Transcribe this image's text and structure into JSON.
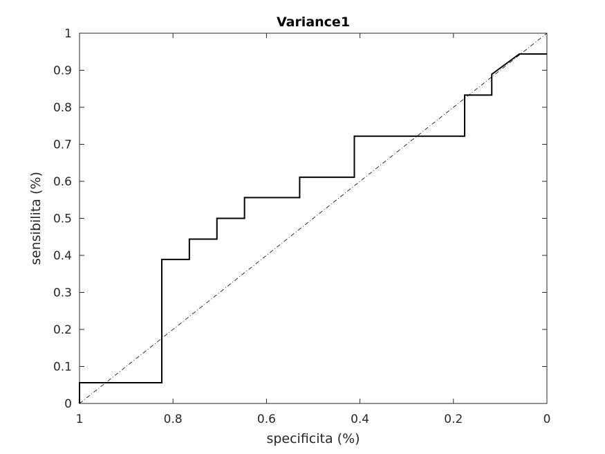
{
  "chart_data": {
    "type": "line",
    "title": "Variance1",
    "xlabel": "specificita (%)",
    "ylabel": "sensibilita (%)",
    "xlim": [
      1,
      0
    ],
    "ylim": [
      0,
      1
    ],
    "x_reversed": true,
    "grid": false,
    "legend": "none",
    "xticks": [
      1,
      0.8,
      0.6,
      0.4,
      0.2,
      0
    ],
    "xtick_labels": [
      "1",
      "0.8",
      "0.6",
      "0.4",
      "0.2",
      "0"
    ],
    "yticks": [
      0,
      0.1,
      0.2,
      0.3,
      0.4,
      0.5,
      0.6,
      0.7,
      0.8,
      0.9,
      1
    ],
    "ytick_labels": [
      "0",
      "0.1",
      "0.2",
      "0.3",
      "0.4",
      "0.5",
      "0.6",
      "0.7",
      "0.8",
      "0.9",
      "1"
    ],
    "series": [
      {
        "style": "solid",
        "color": "#000000",
        "x": [
          1,
          1,
          0.824,
          0.824,
          0.765,
          0.765,
          0.706,
          0.706,
          0.647,
          0.647,
          0.529,
          0.529,
          0.412,
          0.412,
          0.176,
          0.176,
          0.118,
          0.118,
          0.059,
          0
        ],
        "y": [
          0,
          0.056,
          0.056,
          0.389,
          0.389,
          0.444,
          0.444,
          0.5,
          0.5,
          0.556,
          0.556,
          0.611,
          0.611,
          0.722,
          0.722,
          0.833,
          0.833,
          0.889,
          0.944,
          0.944
        ]
      },
      {
        "style": "dash-dot",
        "color": "#000000",
        "x": [
          1,
          0
        ],
        "y": [
          0,
          1
        ]
      }
    ]
  }
}
